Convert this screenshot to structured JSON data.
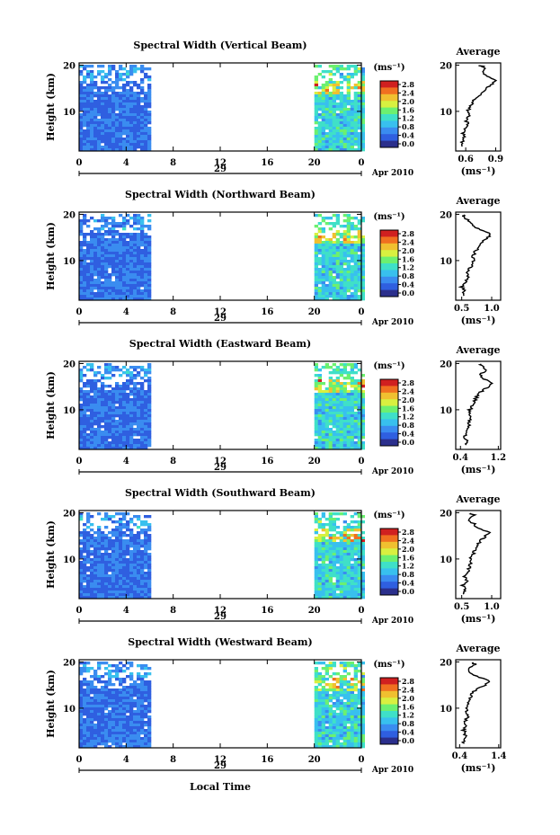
{
  "figure": {
    "xlabel": "Local Time",
    "colors": [
      "#2b2f8c",
      "#2f5fe0",
      "#3a8cf0",
      "#38c0ee",
      "#3fe0c8",
      "#6cf070",
      "#d8f040",
      "#f0c030",
      "#f07020",
      "#d02020"
    ]
  },
  "chart_data": [
    {
      "type": "heatmap",
      "title": "Spectral Width (Vertical Beam)",
      "ylabel": "Height (km)",
      "yticks": [
        "20",
        "10"
      ],
      "xticks": [
        "0",
        "4",
        "8",
        "12",
        "16",
        "20",
        "0"
      ],
      "date_tick": "29",
      "date_label": "Apr 2010",
      "unit": "(ms⁻¹)",
      "colorbar": [
        "2.8",
        "2.4",
        "2.0",
        "1.6",
        "1.2",
        "0.8",
        "0.4",
        "0.0"
      ],
      "data_gap": [
        5.9,
        20.0
      ],
      "profile": {
        "title": "Average",
        "xticks": [
          "0.6",
          "0.9"
        ],
        "xlabel": "(ms⁻¹)",
        "yticks": [
          "20",
          "10"
        ],
        "xlim": [
          0.5,
          0.95
        ],
        "x": [
          0.55,
          0.56,
          0.58,
          0.57,
          0.6,
          0.62,
          0.6,
          0.63,
          0.62,
          0.65,
          0.66,
          0.7,
          0.75,
          0.8,
          0.85,
          0.9,
          0.82,
          0.76,
          0.8,
          0.72
        ],
        "y": [
          2,
          3,
          4,
          5,
          6,
          7,
          8,
          9,
          10,
          11,
          12,
          13,
          14,
          15,
          16,
          17,
          18,
          19,
          20,
          20.5
        ]
      }
    },
    {
      "type": "heatmap",
      "title": "Spectral Width (Northward Beam)",
      "ylabel": "Height (km)",
      "yticks": [
        "20",
        "10"
      ],
      "xticks": [
        "0",
        "4",
        "8",
        "12",
        "16",
        "20",
        "0"
      ],
      "date_tick": "29",
      "date_label": "Apr 2010",
      "unit": "(ms⁻¹)",
      "colorbar": [
        "2.8",
        "2.4",
        "2.0",
        "1.6",
        "1.2",
        "0.8",
        "0.4",
        "0.0"
      ],
      "data_gap": [
        5.9,
        20.0
      ],
      "profile": {
        "title": "Average",
        "xticks": [
          "0.5",
          "1.0"
        ],
        "xlabel": "(ms⁻¹)",
        "yticks": [
          "20",
          "10"
        ],
        "xlim": [
          0.4,
          1.15
        ],
        "x": [
          0.52,
          0.55,
          0.5,
          0.56,
          0.6,
          0.58,
          0.63,
          0.66,
          0.7,
          0.68,
          0.72,
          0.78,
          0.82,
          0.9,
          1.0,
          0.8,
          0.7,
          0.6,
          0.55,
          0.5
        ],
        "y": [
          2,
          3,
          4,
          5,
          6,
          7,
          8,
          9,
          10,
          11,
          12,
          13,
          14,
          15,
          16,
          17,
          18,
          19,
          20,
          20.5
        ]
      }
    },
    {
      "type": "heatmap",
      "title": "Spectral Width (Eastward Beam)",
      "ylabel": "Height (km)",
      "yticks": [
        "20",
        "10"
      ],
      "xticks": [
        "0",
        "4",
        "8",
        "12",
        "16",
        "20",
        "0"
      ],
      "date_tick": "29",
      "date_label": "Apr 2010",
      "unit": "(ms⁻¹)",
      "colorbar": [
        "2.8",
        "2.4",
        "2.0",
        "1.6",
        "1.2",
        "0.8",
        "0.4",
        "0.0"
      ],
      "data_gap": [
        5.9,
        20.0
      ],
      "profile": {
        "title": "Average",
        "xticks": [
          "0.4",
          "1.2"
        ],
        "xlabel": "(ms⁻¹)",
        "yticks": [
          "20",
          "10"
        ],
        "xlim": [
          0.3,
          1.25
        ],
        "x": [
          0.5,
          0.52,
          0.5,
          0.55,
          0.58,
          0.56,
          0.6,
          0.62,
          0.6,
          0.65,
          0.7,
          0.75,
          0.82,
          0.95,
          1.1,
          0.9,
          0.8,
          0.95,
          0.85,
          0.8
        ],
        "y": [
          2,
          3,
          4,
          5,
          6,
          7,
          8,
          9,
          10,
          11,
          12,
          13,
          14,
          15,
          16,
          17,
          18,
          19,
          20,
          20.5
        ]
      }
    },
    {
      "type": "heatmap",
      "title": "Spectral Width (Southward Beam)",
      "ylabel": "Height (km)",
      "yticks": [
        "20",
        "10"
      ],
      "xticks": [
        "0",
        "4",
        "8",
        "12",
        "16",
        "20",
        "0"
      ],
      "date_tick": "29",
      "date_label": "Apr 2010",
      "unit": "(ms⁻¹)",
      "colorbar": [
        "2.8",
        "2.4",
        "2.0",
        "1.6",
        "1.2",
        "0.8",
        "0.4",
        "0.0"
      ],
      "data_gap": [
        5.9,
        20.0
      ],
      "profile": {
        "title": "Average",
        "xticks": [
          "0.5",
          "1.0"
        ],
        "xlabel": "(ms⁻¹)",
        "yticks": [
          "20",
          "10"
        ],
        "xlim": [
          0.4,
          1.15
        ],
        "x": [
          0.5,
          0.56,
          0.52,
          0.58,
          0.55,
          0.6,
          0.62,
          0.66,
          0.65,
          0.7,
          0.72,
          0.75,
          0.8,
          0.88,
          0.95,
          0.78,
          0.7,
          0.6,
          0.72,
          0.6
        ],
        "y": [
          2,
          3,
          4,
          5,
          6,
          7,
          8,
          9,
          10,
          11,
          12,
          13,
          14,
          15,
          16,
          17,
          18,
          19,
          20,
          20.5
        ]
      }
    },
    {
      "type": "heatmap",
      "title": "Spectral Width (Westward Beam)",
      "ylabel": "Height (km)",
      "yticks": [
        "20",
        "10"
      ],
      "xticks": [
        "0",
        "4",
        "8",
        "12",
        "16",
        "20",
        "0"
      ],
      "date_tick": "29",
      "date_label": "Apr 2010",
      "unit": "(ms⁻¹)",
      "colorbar": [
        "2.8",
        "2.4",
        "2.0",
        "1.6",
        "1.2",
        "0.8",
        "0.4",
        "0.0"
      ],
      "data_gap": [
        5.9,
        20.0
      ],
      "profile": {
        "title": "Average",
        "xticks": [
          "0.4",
          "1.4"
        ],
        "xlabel": "(ms⁻¹)",
        "yticks": [
          "20",
          "10"
        ],
        "xlim": [
          0.3,
          1.45
        ],
        "x": [
          0.5,
          0.52,
          0.55,
          0.5,
          0.56,
          0.55,
          0.6,
          0.58,
          0.6,
          0.62,
          0.65,
          0.7,
          0.8,
          1.0,
          1.2,
          0.9,
          0.7,
          0.6,
          0.8,
          0.7
        ],
        "y": [
          2,
          3,
          4,
          5,
          6,
          7,
          8,
          9,
          10,
          11,
          12,
          13,
          14,
          15,
          16,
          17,
          18,
          19,
          20,
          20.5
        ]
      }
    }
  ]
}
